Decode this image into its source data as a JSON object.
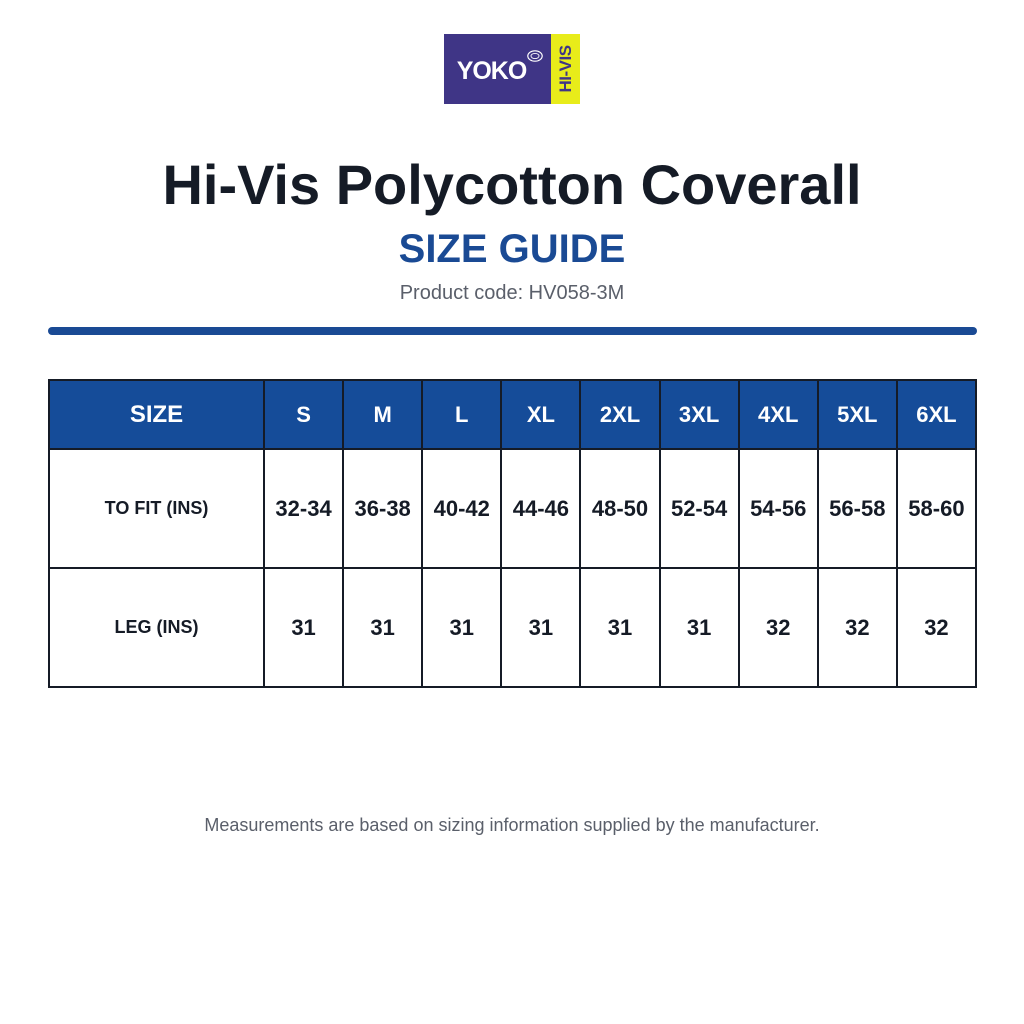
{
  "logo": {
    "brand": "YOKO",
    "tag": "HI-VIS",
    "colors": {
      "purple": "#3f3586",
      "yellow": "#e8ec1a"
    }
  },
  "header": {
    "title": "Hi-Vis Polycotton Coverall",
    "subtitle": "SIZE GUIDE",
    "product_code": "Product code: HV058-3M"
  },
  "table": {
    "header_label": "SIZE",
    "sizes": [
      "S",
      "M",
      "L",
      "XL",
      "2XL",
      "3XL",
      "4XL",
      "5XL",
      "6XL"
    ],
    "rows": [
      {
        "label": "TO FIT (INS)",
        "values": [
          "32-34",
          "36-38",
          "40-42",
          "44-46",
          "48-50",
          "52-54",
          "54-56",
          "56-58",
          "58-60"
        ]
      },
      {
        "label": "LEG (INS)",
        "values": [
          "31",
          "31",
          "31",
          "31",
          "31",
          "31",
          "32",
          "32",
          "32"
        ]
      }
    ]
  },
  "footnote": "Measurements are based on sizing information supplied by the manufacturer.",
  "colors": {
    "accent": "#1a4a94",
    "header_fill": "#154c99",
    "text": "#151b26",
    "muted": "#5a5f6a"
  }
}
